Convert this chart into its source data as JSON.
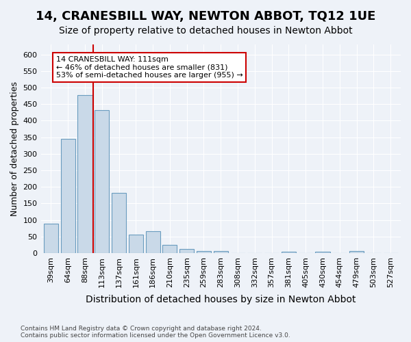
{
  "title": "14, CRANESBILL WAY, NEWTON ABBOT, TQ12 1UE",
  "subtitle": "Size of property relative to detached houses in Newton Abbot",
  "xlabel": "Distribution of detached houses by size in Newton Abbot",
  "ylabel": "Number of detached properties",
  "footer_line1": "Contains HM Land Registry data © Crown copyright and database right 2024.",
  "footer_line2": "Contains public sector information licensed under the Open Government Licence v3.0.",
  "categories": [
    "39sqm",
    "64sqm",
    "88sqm",
    "113sqm",
    "137sqm",
    "161sqm",
    "186sqm",
    "210sqm",
    "235sqm",
    "259sqm",
    "283sqm",
    "308sqm",
    "332sqm",
    "357sqm",
    "381sqm",
    "405sqm",
    "430sqm",
    "454sqm",
    "479sqm",
    "503sqm",
    "527sqm"
  ],
  "values": [
    88,
    345,
    477,
    432,
    181,
    55,
    65,
    25,
    12,
    7,
    5,
    0,
    0,
    0,
    4,
    0,
    4,
    0,
    5,
    0,
    0
  ],
  "bar_color": "#c9d9e8",
  "bar_edge_color": "#6a9cbf",
  "vline_x": 2.5,
  "vline_color": "#cc0000",
  "ylim": [
    0,
    630
  ],
  "yticks": [
    0,
    50,
    100,
    150,
    200,
    250,
    300,
    350,
    400,
    450,
    500,
    550,
    600
  ],
  "annotation_text": "14 CRANESBILL WAY: 111sqm\n← 46% of detached houses are smaller (831)\n53% of semi-detached houses are larger (955) →",
  "annotation_box_color": "#ffffff",
  "annotation_border_color": "#cc0000",
  "bg_color": "#eef2f8",
  "plot_bg_color": "#eef2f8",
  "title_fontsize": 13,
  "subtitle_fontsize": 10,
  "xlabel_fontsize": 10,
  "ylabel_fontsize": 9,
  "tick_fontsize": 8,
  "annotation_fontsize": 8
}
